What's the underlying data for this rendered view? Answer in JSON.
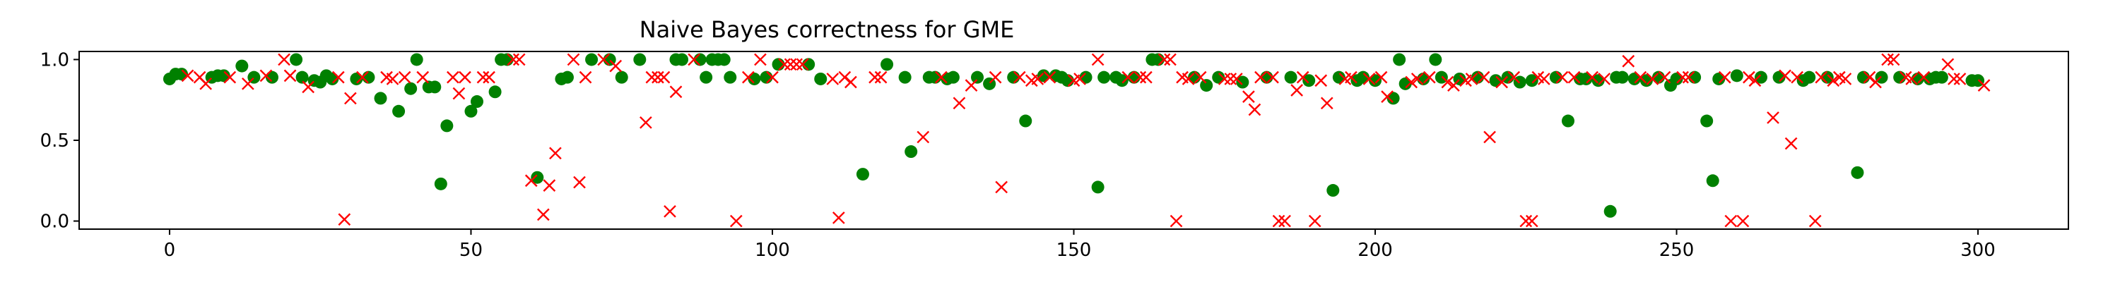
{
  "chart_data": {
    "type": "scatter",
    "title": "Naive Bayes correctness for GME",
    "xlabel": "",
    "ylabel": "",
    "xlim": [
      -15,
      315
    ],
    "ylim": [
      -0.05,
      1.05
    ],
    "xticks": [
      0,
      50,
      100,
      150,
      200,
      250,
      300
    ],
    "yticks": [
      0.0,
      0.5,
      1.0
    ],
    "ytick_labels": [
      "0.0",
      "0.5",
      "1.0"
    ],
    "grid": false,
    "legend": "none",
    "series": [
      {
        "marker": "circle",
        "color": "#008000",
        "points": [
          [
            0,
            0.88
          ],
          [
            1,
            0.91
          ],
          [
            2,
            0.91
          ],
          [
            7,
            0.89
          ],
          [
            8,
            0.9
          ],
          [
            9,
            0.9
          ],
          [
            12,
            0.96
          ],
          [
            14,
            0.89
          ],
          [
            17,
            0.89
          ],
          [
            21,
            1.0
          ],
          [
            22,
            0.89
          ],
          [
            24,
            0.87
          ],
          [
            25,
            0.86
          ],
          [
            26,
            0.9
          ],
          [
            27,
            0.88
          ],
          [
            31,
            0.88
          ],
          [
            33,
            0.89
          ],
          [
            35,
            0.76
          ],
          [
            38,
            0.68
          ],
          [
            40,
            0.82
          ],
          [
            41,
            1.0
          ],
          [
            43,
            0.83
          ],
          [
            44,
            0.83
          ],
          [
            45,
            0.23
          ],
          [
            46,
            0.59
          ],
          [
            50,
            0.68
          ],
          [
            51,
            0.74
          ],
          [
            54,
            0.8
          ],
          [
            55,
            1.0
          ],
          [
            56,
            1.0
          ],
          [
            61,
            0.27
          ],
          [
            65,
            0.88
          ],
          [
            66,
            0.89
          ],
          [
            70,
            1.0
          ],
          [
            73,
            1.0
          ],
          [
            75,
            0.89
          ],
          [
            78,
            1.0
          ],
          [
            84,
            1.0
          ],
          [
            85,
            1.0
          ],
          [
            88,
            1.0
          ],
          [
            89,
            0.89
          ],
          [
            90,
            1.0
          ],
          [
            91,
            1.0
          ],
          [
            92,
            1.0
          ],
          [
            93,
            0.89
          ],
          [
            97,
            0.88
          ],
          [
            99,
            0.89
          ],
          [
            101,
            0.97
          ],
          [
            106,
            0.97
          ],
          [
            108,
            0.88
          ],
          [
            115,
            0.29
          ],
          [
            119,
            0.97
          ],
          [
            122,
            0.89
          ],
          [
            123,
            0.43
          ],
          [
            126,
            0.89
          ],
          [
            127,
            0.89
          ],
          [
            129,
            0.88
          ],
          [
            130,
            0.89
          ],
          [
            134,
            0.89
          ],
          [
            136,
            0.85
          ],
          [
            140,
            0.89
          ],
          [
            142,
            0.62
          ],
          [
            145,
            0.9
          ],
          [
            147,
            0.9
          ],
          [
            148,
            0.89
          ],
          [
            149,
            0.87
          ],
          [
            152,
            0.89
          ],
          [
            154,
            0.21
          ],
          [
            155,
            0.89
          ],
          [
            157,
            0.89
          ],
          [
            158,
            0.87
          ],
          [
            160,
            0.89
          ],
          [
            163,
            1.0
          ],
          [
            164,
            1.0
          ],
          [
            170,
            0.89
          ],
          [
            172,
            0.84
          ],
          [
            174,
            0.89
          ],
          [
            178,
            0.86
          ],
          [
            182,
            0.89
          ],
          [
            186,
            0.89
          ],
          [
            189,
            0.87
          ],
          [
            193,
            0.19
          ],
          [
            194,
            0.89
          ],
          [
            197,
            0.87
          ],
          [
            198,
            0.89
          ],
          [
            200,
            0.87
          ],
          [
            203,
            0.76
          ],
          [
            204,
            1.0
          ],
          [
            205,
            0.85
          ],
          [
            208,
            0.88
          ],
          [
            210,
            1.0
          ],
          [
            211,
            0.89
          ],
          [
            214,
            0.88
          ],
          [
            217,
            0.89
          ],
          [
            220,
            0.87
          ],
          [
            222,
            0.89
          ],
          [
            224,
            0.86
          ],
          [
            226,
            0.87
          ],
          [
            230,
            0.89
          ],
          [
            232,
            0.62
          ],
          [
            234,
            0.88
          ],
          [
            235,
            0.88
          ],
          [
            237,
            0.87
          ],
          [
            239,
            0.06
          ],
          [
            240,
            0.89
          ],
          [
            241,
            0.89
          ],
          [
            243,
            0.88
          ],
          [
            245,
            0.87
          ],
          [
            247,
            0.89
          ],
          [
            249,
            0.84
          ],
          [
            250,
            0.88
          ],
          [
            253,
            0.89
          ],
          [
            255,
            0.62
          ],
          [
            256,
            0.25
          ],
          [
            257,
            0.88
          ],
          [
            260,
            0.9
          ],
          [
            264,
            0.89
          ],
          [
            267,
            0.89
          ],
          [
            271,
            0.87
          ],
          [
            272,
            0.89
          ],
          [
            275,
            0.89
          ],
          [
            280,
            0.3
          ],
          [
            281,
            0.89
          ],
          [
            284,
            0.89
          ],
          [
            287,
            0.89
          ],
          [
            290,
            0.88
          ],
          [
            292,
            0.88
          ],
          [
            293,
            0.89
          ],
          [
            294,
            0.89
          ],
          [
            299,
            0.87
          ],
          [
            300,
            0.87
          ]
        ]
      },
      {
        "marker": "x",
        "color": "#ff0000",
        "points": [
          [
            3,
            0.9
          ],
          [
            5,
            0.89
          ],
          [
            6,
            0.85
          ],
          [
            10,
            0.89
          ],
          [
            13,
            0.85
          ],
          [
            16,
            0.9
          ],
          [
            19,
            1.0
          ],
          [
            20,
            0.9
          ],
          [
            23,
            0.83
          ],
          [
            28,
            0.89
          ],
          [
            29,
            0.01
          ],
          [
            30,
            0.76
          ],
          [
            32,
            0.89
          ],
          [
            36,
            0.89
          ],
          [
            37,
            0.88
          ],
          [
            39,
            0.89
          ],
          [
            42,
            0.89
          ],
          [
            47,
            0.89
          ],
          [
            48,
            0.79
          ],
          [
            49,
            0.89
          ],
          [
            52,
            0.89
          ],
          [
            53,
            0.89
          ],
          [
            57,
            1.0
          ],
          [
            58,
            1.0
          ],
          [
            60,
            0.25
          ],
          [
            62,
            0.04
          ],
          [
            63,
            0.22
          ],
          [
            64,
            0.42
          ],
          [
            67,
            1.0
          ],
          [
            68,
            0.24
          ],
          [
            69,
            0.89
          ],
          [
            72,
            1.0
          ],
          [
            74,
            0.96
          ],
          [
            79,
            0.61
          ],
          [
            80,
            0.89
          ],
          [
            81,
            0.89
          ],
          [
            82,
            0.89
          ],
          [
            83,
            0.06
          ],
          [
            84,
            0.8
          ],
          [
            87,
            1.0
          ],
          [
            94,
            0.0
          ],
          [
            96,
            0.89
          ],
          [
            98,
            1.0
          ],
          [
            100,
            0.89
          ],
          [
            102,
            0.97
          ],
          [
            103,
            0.97
          ],
          [
            104,
            0.97
          ],
          [
            105,
            0.97
          ],
          [
            110,
            0.88
          ],
          [
            111,
            0.02
          ],
          [
            112,
            0.89
          ],
          [
            113,
            0.86
          ],
          [
            117,
            0.89
          ],
          [
            118,
            0.89
          ],
          [
            125,
            0.52
          ],
          [
            128,
            0.89
          ],
          [
            131,
            0.73
          ],
          [
            133,
            0.84
          ],
          [
            137,
            0.89
          ],
          [
            138,
            0.21
          ],
          [
            141,
            0.89
          ],
          [
            143,
            0.87
          ],
          [
            144,
            0.88
          ],
          [
            146,
            0.89
          ],
          [
            150,
            0.87
          ],
          [
            151,
            0.88
          ],
          [
            154,
            1.0
          ],
          [
            159,
            0.89
          ],
          [
            161,
            0.89
          ],
          [
            162,
            0.89
          ],
          [
            165,
            1.0
          ],
          [
            166,
            1.0
          ],
          [
            167,
            0.0
          ],
          [
            168,
            0.89
          ],
          [
            169,
            0.88
          ],
          [
            171,
            0.89
          ],
          [
            175,
            0.88
          ],
          [
            176,
            0.88
          ],
          [
            177,
            0.88
          ],
          [
            179,
            0.77
          ],
          [
            180,
            0.69
          ],
          [
            181,
            0.89
          ],
          [
            183,
            0.89
          ],
          [
            184,
            0.0
          ],
          [
            185,
            0.0
          ],
          [
            187,
            0.81
          ],
          [
            188,
            0.89
          ],
          [
            190,
            0.0
          ],
          [
            191,
            0.87
          ],
          [
            192,
            0.73
          ],
          [
            195,
            0.88
          ],
          [
            196,
            0.89
          ],
          [
            199,
            0.88
          ],
          [
            201,
            0.89
          ],
          [
            202,
            0.77
          ],
          [
            206,
            0.86
          ],
          [
            207,
            0.88
          ],
          [
            209,
            0.89
          ],
          [
            212,
            0.86
          ],
          [
            213,
            0.84
          ],
          [
            215,
            0.87
          ],
          [
            216,
            0.88
          ],
          [
            218,
            0.89
          ],
          [
            219,
            0.52
          ],
          [
            221,
            0.86
          ],
          [
            223,
            0.89
          ],
          [
            225,
            0.0
          ],
          [
            226,
            0.0
          ],
          [
            227,
            0.89
          ],
          [
            228,
            0.88
          ],
          [
            231,
            0.89
          ],
          [
            233,
            0.89
          ],
          [
            236,
            0.89
          ],
          [
            238,
            0.88
          ],
          [
            242,
            0.99
          ],
          [
            244,
            0.89
          ],
          [
            246,
            0.88
          ],
          [
            248,
            0.89
          ],
          [
            251,
            0.89
          ],
          [
            252,
            0.89
          ],
          [
            258,
            0.89
          ],
          [
            259,
            0.0
          ],
          [
            261,
            0.0
          ],
          [
            262,
            0.89
          ],
          [
            263,
            0.87
          ],
          [
            266,
            0.64
          ],
          [
            268,
            0.9
          ],
          [
            269,
            0.48
          ],
          [
            270,
            0.89
          ],
          [
            273,
            0.0
          ],
          [
            274,
            0.89
          ],
          [
            276,
            0.87
          ],
          [
            277,
            0.89
          ],
          [
            278,
            0.88
          ],
          [
            282,
            0.89
          ],
          [
            283,
            0.86
          ],
          [
            285,
            1.0
          ],
          [
            286,
            1.0
          ],
          [
            288,
            0.89
          ],
          [
            289,
            0.88
          ],
          [
            291,
            0.89
          ],
          [
            295,
            0.97
          ],
          [
            296,
            0.88
          ],
          [
            297,
            0.88
          ],
          [
            301,
            0.84
          ]
        ]
      }
    ]
  }
}
